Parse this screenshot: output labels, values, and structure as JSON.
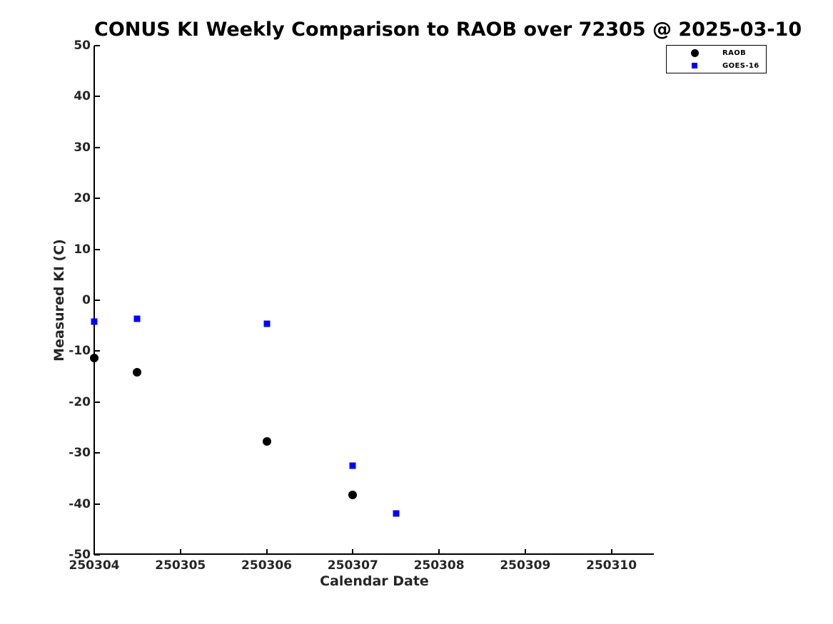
{
  "chart_data": {
    "type": "scatter",
    "title": "CONUS KI Weekly Comparison to RAOB over 72305 @ 2025-03-10",
    "xlabel": "Calendar Date",
    "ylabel": "Measured KI (C)",
    "xlim": [
      250304,
      250310.5
    ],
    "ylim": [
      -50,
      50
    ],
    "xticks": [
      250304,
      250305,
      250306,
      250307,
      250308,
      250309,
      250310
    ],
    "yticks": [
      -50,
      -40,
      -30,
      -20,
      -10,
      0,
      10,
      20,
      30,
      40,
      50
    ],
    "grid": false,
    "legend_position": "outside-top-right",
    "series": [
      {
        "name": "RAOB",
        "marker": "circle",
        "color": "#000000",
        "marker_size": 12,
        "points": [
          [
            250304.0,
            -11.4
          ],
          [
            250304.5,
            -14.2
          ],
          [
            250306.0,
            -27.7
          ],
          [
            250307.0,
            -38.3
          ]
        ]
      },
      {
        "name": "GOES-16",
        "marker": "square",
        "color": "#0000ff",
        "marker_size": 9,
        "points": [
          [
            250304.0,
            -4.2
          ],
          [
            250304.5,
            -3.7
          ],
          [
            250306.0,
            -4.6
          ],
          [
            250307.0,
            -32.5
          ],
          [
            250307.5,
            -41.9
          ]
        ]
      }
    ]
  },
  "colors": {
    "raob": "#000000",
    "goes16": "#0000ff",
    "axis": "#000000",
    "background": "#ffffff"
  }
}
